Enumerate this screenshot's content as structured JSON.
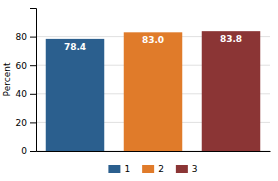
{
  "chart_data": {
    "type": "bar",
    "categories": [
      "1",
      "2",
      "3"
    ],
    "values": [
      78.4,
      83.0,
      83.8
    ],
    "value_labels": [
      "78.4",
      "83.0",
      "83.8"
    ],
    "colors": [
      "#2b5f8e",
      "#e07b2a",
      "#8b3535"
    ],
    "ylabel": "Percent",
    "ylim": [
      0,
      100
    ],
    "yticks": [
      0,
      20,
      40,
      60,
      80
    ],
    "grid": true,
    "data_labels": true,
    "tick_labels": "y",
    "legend": "bottom"
  }
}
